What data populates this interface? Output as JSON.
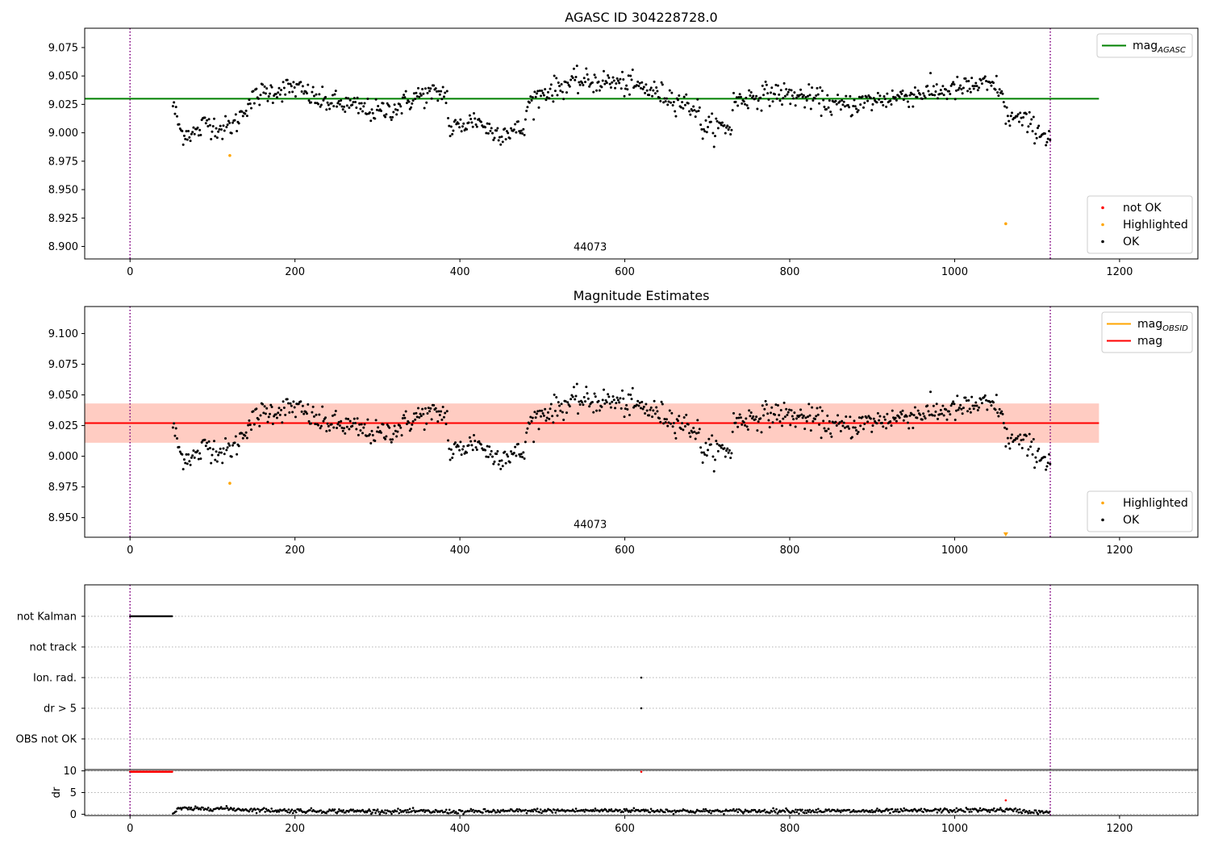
{
  "figure": {
    "background": "#ffffff"
  },
  "colors": {
    "ok": "#000000",
    "highlighted": "#ffa500",
    "not_ok": "#ff0000",
    "agasc_line": "#008000",
    "mag_line": "#ff0000",
    "obsid_line": "#ffa500",
    "vline": "#800080",
    "band_outer": "#ffc0cb",
    "band_inner": "#ffa07a",
    "grid": "#b0b0b0"
  },
  "chart_data": [
    {
      "type": "scatter",
      "title": "AGASC ID 304228728.0",
      "xlim": [
        -55,
        1295
      ],
      "ylim": [
        8.889,
        9.092
      ],
      "xticks": [
        0,
        200,
        400,
        600,
        800,
        1000,
        1200
      ],
      "yticks": [
        8.9,
        8.925,
        8.95,
        8.975,
        9.0,
        9.025,
        9.05,
        9.075
      ],
      "ytick_format": 3,
      "vlines": [
        0,
        1116
      ],
      "hlines": [
        {
          "label": "mag$_{AGASC}$",
          "text": "mag",
          "sub": "AGASC",
          "y": 9.03,
          "x": [
            -55,
            1175
          ],
          "color": "#008000"
        }
      ],
      "annotation": {
        "text": "44073",
        "x": 558,
        "y": 8.9
      },
      "series": [
        {
          "name": "not OK",
          "color": "#ff0000",
          "points": []
        },
        {
          "name": "Highlighted",
          "color": "#ffa500",
          "points": [
            [
              121,
              8.98
            ],
            [
              1062,
              8.92
            ]
          ]
        },
        {
          "name": "OK",
          "color": "#000000",
          "profile": [
            [
              52,
              9.025
            ],
            [
              62,
              9.0
            ],
            [
              82,
              9.0
            ],
            [
              92,
              9.01
            ],
            [
              112,
              9.003
            ],
            [
              128,
              9.008
            ],
            [
              142,
              9.025
            ],
            [
              160,
              9.035
            ],
            [
              200,
              9.04
            ],
            [
              230,
              9.028
            ],
            [
              260,
              9.025
            ],
            [
              300,
              9.018
            ],
            [
              322,
              9.022
            ],
            [
              350,
              9.033
            ],
            [
              385,
              9.035
            ],
            [
              386,
              9.002
            ],
            [
              420,
              9.012
            ],
            [
              440,
              9.0
            ],
            [
              480,
              9.003
            ],
            [
              481,
              9.025
            ],
            [
              500,
              9.035
            ],
            [
              540,
              9.045
            ],
            [
              580,
              9.045
            ],
            [
              620,
              9.04
            ],
            [
              660,
              9.03
            ],
            [
              690,
              9.02
            ],
            [
              692,
              9.005
            ],
            [
              730,
              9.005
            ],
            [
              731,
              9.028
            ],
            [
              780,
              9.035
            ],
            [
              830,
              9.03
            ],
            [
              860,
              9.023
            ],
            [
              900,
              9.028
            ],
            [
              960,
              9.035
            ],
            [
              1000,
              9.038
            ],
            [
              1030,
              9.042
            ],
            [
              1055,
              9.04
            ],
            [
              1062,
              9.015
            ],
            [
              1085,
              9.01
            ],
            [
              1116,
              8.995
            ]
          ],
          "range": [
            52,
            1116
          ],
          "step": 1.25,
          "noise": 0.0085
        }
      ]
    },
    {
      "type": "scatter",
      "title": "Magnitude Estimates",
      "xlim": [
        -55,
        1295
      ],
      "ylim": [
        8.934,
        9.122
      ],
      "xticks": [
        0,
        200,
        400,
        600,
        800,
        1000,
        1200
      ],
      "yticks": [
        8.95,
        8.975,
        9.0,
        9.025,
        9.05,
        9.075,
        9.1
      ],
      "ytick_format": 3,
      "vlines": [
        0,
        1116
      ],
      "hlines": [
        {
          "label": "mag$_{OBSID}$",
          "text": "mag",
          "sub": "OBSID",
          "y": 9.027,
          "x": [
            -55,
            1175
          ],
          "color": "#ffa500"
        },
        {
          "label": "mag",
          "text": "mag",
          "sub": "",
          "y": 9.027,
          "x": [
            -55,
            1175
          ],
          "color": "#ff0000"
        }
      ],
      "bands": [
        {
          "y": [
            9.011,
            9.043
          ],
          "x": [
            -55,
            1175
          ],
          "color": "#ffc0cb",
          "alpha": 0.45
        },
        {
          "y": [
            9.011,
            9.043
          ],
          "x": [
            -55,
            1175
          ],
          "color": "#ffa07a",
          "alpha": 0.35
        }
      ],
      "annotation": {
        "text": "44073",
        "x": 558,
        "y": 8.945
      },
      "series": [
        {
          "name": "Highlighted",
          "color": "#ffa500",
          "points": [
            [
              121,
              8.978
            ],
            [
              1062,
              8.935
            ]
          ]
        },
        {
          "name": "OK",
          "color": "#000000",
          "same_as_panel": 0
        }
      ]
    },
    {
      "type": "scatter",
      "title": "",
      "xlim": [
        -55,
        1295
      ],
      "flags": {
        "labels": [
          "not Kalman",
          "not track",
          "Ion. rad.",
          "dr > 5",
          "OBS not OK"
        ],
        "series": [
          {
            "flag": "not Kalman",
            "x_range": [
              0,
              51
            ],
            "step": 1
          },
          {
            "flag": "Ion. rad.",
            "x_points": [
              620
            ]
          },
          {
            "flag": "dr > 5",
            "x_points": [
              620
            ]
          }
        ]
      },
      "dr": {
        "ylabel": "dr",
        "ylim": [
          -0.3,
          10.3
        ],
        "yticks": [
          0,
          5,
          10
        ],
        "hline": 10,
        "capped": {
          "color": "#ff0000",
          "x_range": [
            0,
            51
          ],
          "y": 9.8,
          "extra": [
            [
              620,
              9.8
            ]
          ]
        },
        "outliers": [
          [
            1062,
            3.2
          ]
        ],
        "profile": [
          [
            52,
            0.2
          ],
          [
            60,
            1.3
          ],
          [
            80,
            1.2
          ],
          [
            100,
            1.4
          ],
          [
            150,
            1.0
          ],
          [
            200,
            0.8
          ],
          [
            300,
            0.7
          ],
          [
            400,
            0.6
          ],
          [
            500,
            0.8
          ],
          [
            600,
            0.9
          ],
          [
            700,
            0.7
          ],
          [
            800,
            0.8
          ],
          [
            900,
            0.7
          ],
          [
            1000,
            0.9
          ],
          [
            1062,
            1.0
          ],
          [
            1100,
            0.5
          ],
          [
            1116,
            0.4
          ]
        ],
        "range": [
          52,
          1116
        ],
        "step": 1.3
      },
      "vlines": [
        0,
        1116
      ],
      "xticks": [
        0,
        200,
        400,
        600,
        800,
        1000,
        1200
      ]
    }
  ],
  "legends": [
    {
      "panel": 0,
      "position": "top-right",
      "entries": [
        {
          "kind": "line",
          "text": "mag",
          "sub": "AGASC",
          "color": "#008000"
        }
      ]
    },
    {
      "panel": 0,
      "position": "bottom-right",
      "entries": [
        {
          "kind": "dot",
          "text": "not OK",
          "color": "#ff0000"
        },
        {
          "kind": "dot",
          "text": "Highlighted",
          "color": "#ffa500"
        },
        {
          "kind": "dot",
          "text": "OK",
          "color": "#000000"
        }
      ]
    },
    {
      "panel": 1,
      "position": "top-right",
      "entries": [
        {
          "kind": "line",
          "text": "mag",
          "sub": "OBSID",
          "color": "#ffa500"
        },
        {
          "kind": "line",
          "text": "mag",
          "sub": "",
          "color": "#ff0000"
        }
      ]
    },
    {
      "panel": 1,
      "position": "bottom-right",
      "entries": [
        {
          "kind": "dot",
          "text": "Highlighted",
          "color": "#ffa500"
        },
        {
          "kind": "dot",
          "text": "OK",
          "color": "#000000"
        }
      ]
    }
  ]
}
